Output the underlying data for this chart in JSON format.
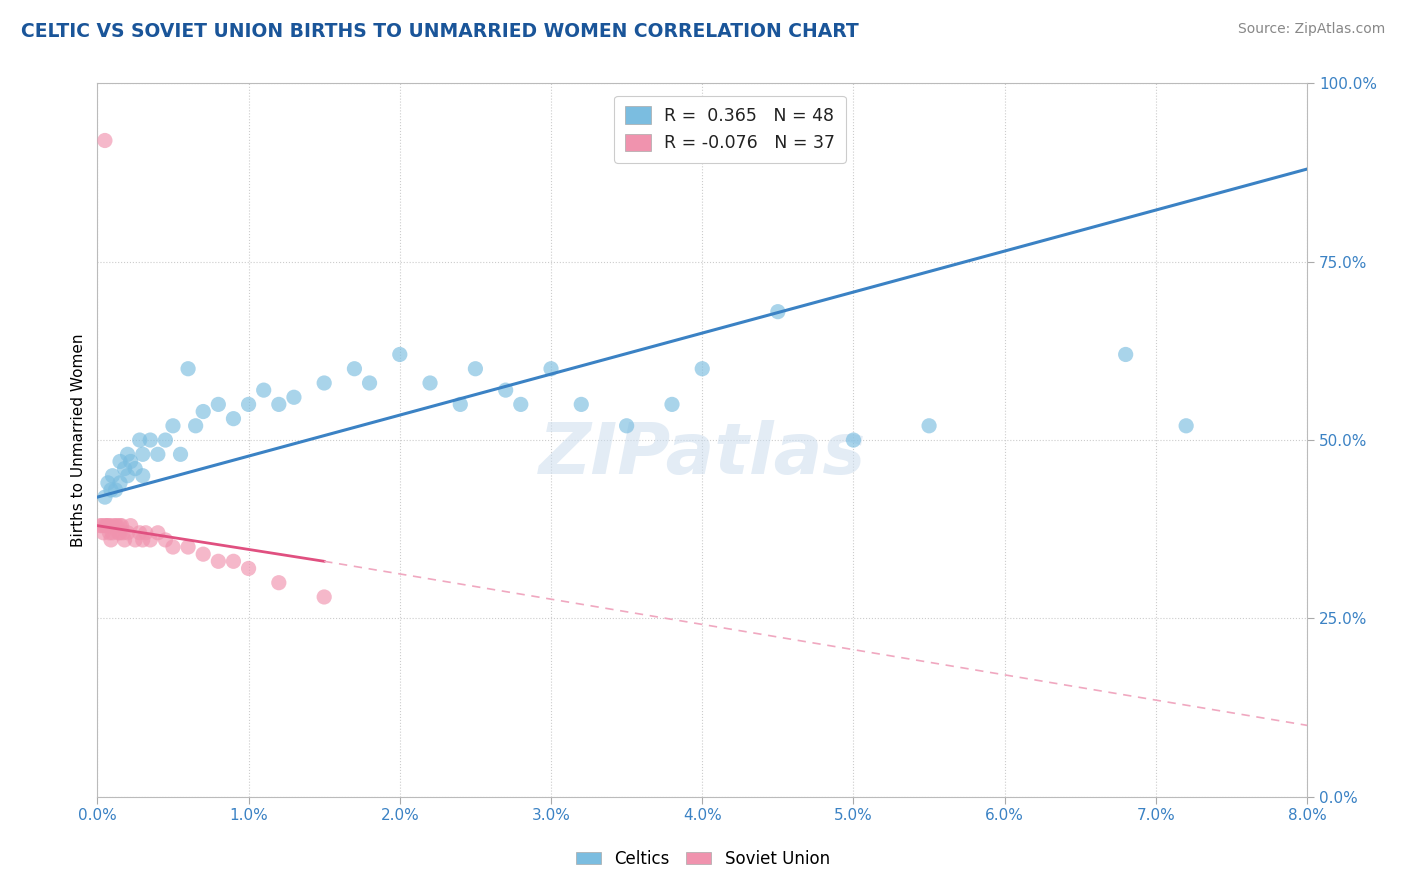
{
  "title": "CELTIC VS SOVIET UNION BIRTHS TO UNMARRIED WOMEN CORRELATION CHART",
  "source": "Source: ZipAtlas.com",
  "ylabel": "Births to Unmarried Women",
  "legend_bottom": [
    "Celtics",
    "Soviet Union"
  ],
  "watermark": "ZIPatlas",
  "R_celtic": 0.365,
  "N_celtic": 48,
  "R_soviet": -0.076,
  "N_soviet": 37,
  "celtic_color": "#7bbde0",
  "soviet_color": "#f093ae",
  "celtic_line_color": "#3b82c4",
  "soviet_line_solid_color": "#e05080",
  "soviet_line_dash_color": "#f0a8c0",
  "xmin": 0.0,
  "xmax": 8.0,
  "ymin": 0.0,
  "ymax": 100.0,
  "celtic_x": [
    0.05,
    0.07,
    0.09,
    0.1,
    0.12,
    0.15,
    0.15,
    0.18,
    0.2,
    0.2,
    0.22,
    0.25,
    0.28,
    0.3,
    0.3,
    0.35,
    0.4,
    0.45,
    0.5,
    0.55,
    0.6,
    0.65,
    0.7,
    0.8,
    0.9,
    1.0,
    1.1,
    1.2,
    1.3,
    1.5,
    1.7,
    1.8,
    2.0,
    2.2,
    2.4,
    2.5,
    2.7,
    2.8,
    3.0,
    3.2,
    3.5,
    3.8,
    4.0,
    4.5,
    5.0,
    5.5,
    6.8,
    7.2
  ],
  "celtic_y": [
    42,
    44,
    43,
    45,
    43,
    47,
    44,
    46,
    48,
    45,
    47,
    46,
    50,
    48,
    45,
    50,
    48,
    50,
    52,
    48,
    60,
    52,
    54,
    55,
    53,
    55,
    57,
    55,
    56,
    58,
    60,
    58,
    62,
    58,
    55,
    60,
    57,
    55,
    60,
    55,
    52,
    55,
    60,
    68,
    50,
    52,
    62,
    52
  ],
  "soviet_x": [
    0.02,
    0.03,
    0.04,
    0.05,
    0.06,
    0.07,
    0.08,
    0.08,
    0.09,
    0.1,
    0.1,
    0.12,
    0.13,
    0.14,
    0.15,
    0.15,
    0.16,
    0.17,
    0.18,
    0.2,
    0.22,
    0.25,
    0.28,
    0.3,
    0.32,
    0.35,
    0.4,
    0.45,
    0.5,
    0.6,
    0.7,
    0.8,
    0.9,
    1.0,
    1.2,
    1.5,
    0.05
  ],
  "soviet_y": [
    38,
    38,
    37,
    38,
    38,
    38,
    37,
    38,
    36,
    37,
    38,
    38,
    38,
    37,
    38,
    37,
    38,
    37,
    36,
    37,
    38,
    36,
    37,
    36,
    37,
    36,
    37,
    36,
    35,
    35,
    34,
    33,
    33,
    32,
    30,
    28,
    92
  ],
  "celtic_line_x0": 0.0,
  "celtic_line_y0": 42.0,
  "celtic_line_x1": 8.0,
  "celtic_line_y1": 88.0,
  "soviet_solid_x0": 0.0,
  "soviet_solid_y0": 38.0,
  "soviet_solid_x1": 1.5,
  "soviet_solid_y1": 33.0,
  "soviet_dash_x0": 1.5,
  "soviet_dash_y0": 33.0,
  "soviet_dash_x1": 8.0,
  "soviet_dash_y1": 10.0
}
